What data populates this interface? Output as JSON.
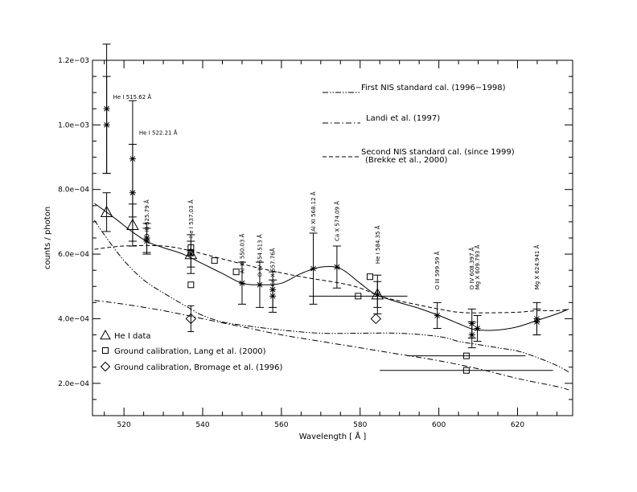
{
  "chart_data": {
    "type": "scatter",
    "xlabel": "Wavelength [ Å ]",
    "ylabel": "counts / photon",
    "xlim": [
      512,
      634
    ],
    "ylim": [
      0.0001,
      0.0012
    ],
    "x_ticks": [
      520,
      540,
      560,
      580,
      600,
      620
    ],
    "x_tick_labels": [
      "520",
      "540",
      "560",
      "580",
      "600",
      "620"
    ],
    "y_ticks": [
      0.0002,
      0.0004,
      0.0006,
      0.0008,
      0.001,
      0.0012
    ],
    "y_tick_labels": [
      "2.0e−04",
      "4.0e−04",
      "6.0e−04",
      "8.0e−04",
      "1.0e−03",
      "1.2e−03"
    ],
    "grid": false,
    "legend_lines": [
      {
        "label": "First NIS standard cal. (1996−1998)",
        "style": "dash-dot-dot"
      },
      {
        "label": "Landi et al. (1997)",
        "style": "dash-dot"
      },
      {
        "label": "Second NIS standard cal. (since 1999)",
        "style": "dashed"
      },
      {
        "label": "(Brekke et al., 2000)",
        "style": "none"
      }
    ],
    "legend_markers": [
      {
        "label": "He I data",
        "marker": "triangle"
      },
      {
        "label": "Ground calibration, Lang et al. (2000)",
        "marker": "square"
      },
      {
        "label": "Ground calibration, Bromage et al. (1996)",
        "marker": "diamond"
      }
    ],
    "line_annotations": [
      {
        "text": "He I 515.62 Å",
        "x": 515.6,
        "y": 0.00108,
        "orientation": "horizontal"
      },
      {
        "text": "He I 522.21 Å",
        "x": 522.2,
        "y": 0.00097,
        "orientation": "horizontal"
      },
      {
        "text": "O III 525.79 Å",
        "x": 525.8,
        "y": 0.00065,
        "orientation": "vertical"
      },
      {
        "text": "He I 537.03 Å",
        "x": 537.0,
        "y": 0.00065,
        "orientation": "vertical"
      },
      {
        "text": "Al XI 550.03 Å",
        "x": 550.0,
        "y": 0.00054,
        "orientation": "vertical"
      },
      {
        "text": "O IV 554.513 Å",
        "x": 554.5,
        "y": 0.00053,
        "orientation": "vertical"
      },
      {
        "text": "Ca X 557.76Å",
        "x": 557.8,
        "y": 0.0005,
        "orientation": "vertical"
      },
      {
        "text": "Al XI 568.12 Å",
        "x": 568.1,
        "y": 0.00067,
        "orientation": "vertical"
      },
      {
        "text": "Ca X 574.09 Å",
        "x": 574.1,
        "y": 0.00064,
        "orientation": "vertical"
      },
      {
        "text": "He I 584.35 Å",
        "x": 584.4,
        "y": 0.00057,
        "orientation": "vertical"
      },
      {
        "text": "O III 599.59 Å",
        "x": 599.6,
        "y": 0.00049,
        "orientation": "vertical"
      },
      {
        "text": "O IV 608.397 Å",
        "x": 608.4,
        "y": 0.00049,
        "orientation": "vertical"
      },
      {
        "text": "Mg X 609.793 Å",
        "x": 609.8,
        "y": 0.00049,
        "orientation": "vertical"
      },
      {
        "text": "Mg X 624.941 Å",
        "x": 624.9,
        "y": 0.00049,
        "orientation": "vertical"
      }
    ],
    "series": [
      {
        "style": "solid",
        "x": [
          512.5,
          515,
          518,
          522,
          526,
          530,
          535,
          540,
          545,
          550,
          555,
          560,
          565,
          570,
          575,
          580,
          584,
          590,
          595,
          600,
          605,
          608,
          610,
          615,
          620,
          625,
          630,
          633
        ],
        "y": [
          0.000757,
          0.000735,
          0.000708,
          0.00067,
          0.000638,
          0.00062,
          0.0006,
          0.00057,
          0.00054,
          0.00051,
          0.000505,
          0.00051,
          0.00054,
          0.00056,
          0.000555,
          0.00051,
          0.000475,
          0.00045,
          0.000432,
          0.00041,
          0.000385,
          0.00037,
          0.000365,
          0.000365,
          0.000375,
          0.000395,
          0.000415,
          0.00043
        ]
      },
      {
        "style": "dashed",
        "x": [
          512.5,
          520,
          530,
          537,
          545,
          555,
          565,
          575,
          580,
          585,
          590,
          600,
          605,
          610,
          620,
          625,
          630,
          633
        ],
        "y": [
          0.000615,
          0.000625,
          0.000625,
          0.00061,
          0.000585,
          0.000555,
          0.00053,
          0.00051,
          0.000495,
          0.00047,
          0.000455,
          0.00043,
          0.00042,
          0.000418,
          0.00042,
          0.000425,
          0.000425,
          0.00043
        ]
      },
      {
        "style": "dash-dot-dot",
        "x": [
          512.5,
          515,
          520,
          525,
          530,
          537,
          540,
          545,
          550,
          560,
          570,
          580,
          590,
          600,
          605,
          610,
          615,
          620,
          625,
          630,
          633
        ],
        "y": [
          0.000705,
          0.00066,
          0.00058,
          0.00052,
          0.00048,
          0.00043,
          0.00041,
          0.00039,
          0.00038,
          0.000365,
          0.000355,
          0.000355,
          0.000355,
          0.000345,
          0.00033,
          0.00032,
          0.00031,
          0.0003,
          0.00028,
          0.000255,
          0.000235
        ]
      },
      {
        "style": "dash-dot",
        "x": [
          512.5,
          520,
          530,
          540,
          550,
          560,
          570,
          580,
          590,
          600,
          610,
          620,
          630,
          633
        ],
        "y": [
          0.000457,
          0.000445,
          0.000425,
          0.0004,
          0.000375,
          0.00035,
          0.00033,
          0.00031,
          0.00029,
          0.00027,
          0.000245,
          0.000215,
          0.00019,
          0.00018
        ]
      }
    ],
    "points_star": [
      {
        "x": 515.6,
        "y": 0.00105,
        "err": 0.0002
      },
      {
        "x": 515.6,
        "y": 0.001,
        "err": 0.00015
      },
      {
        "x": 522.2,
        "y": 0.000895,
        "err": 0.00018
      },
      {
        "x": 522.2,
        "y": 0.00079,
        "err": 0.00015
      },
      {
        "x": 525.8,
        "y": 0.00065,
        "err": 4.5e-05
      },
      {
        "x": 525.8,
        "y": 0.00064,
        "err": 4e-05
      },
      {
        "x": 537.0,
        "y": 0.0006,
        "err": 6e-05
      },
      {
        "x": 550.0,
        "y": 0.00051,
        "err": 6.5e-05
      },
      {
        "x": 554.5,
        "y": 0.000505,
        "err": 7e-05
      },
      {
        "x": 557.8,
        "y": 0.00049,
        "err": 5.5e-05
      },
      {
        "x": 557.8,
        "y": 0.00047,
        "err": 5e-05
      },
      {
        "x": 568.1,
        "y": 0.000555,
        "err": 0.00011
      },
      {
        "x": 574.1,
        "y": 0.00056,
        "err": 6.5e-05
      },
      {
        "x": 584.4,
        "y": 0.000475,
        "err": 6e-05
      },
      {
        "x": 599.6,
        "y": 0.00041,
        "err": 4e-05
      },
      {
        "x": 608.4,
        "y": 0.000385,
        "err": 4.5e-05
      },
      {
        "x": 608.4,
        "y": 0.00035,
        "err": 4e-05
      },
      {
        "x": 609.8,
        "y": 0.00037,
        "err": 4e-05
      },
      {
        "x": 624.9,
        "y": 0.0004,
        "err": 5e-05
      },
      {
        "x": 624.9,
        "y": 0.00039,
        "err": 4e-05
      }
    ],
    "points_triangle": [
      {
        "x": 515.6,
        "y": 0.00073,
        "err": 6e-05
      },
      {
        "x": 522.2,
        "y": 0.00069,
        "err": 6.5e-05
      },
      {
        "x": 537.0,
        "y": 0.0006,
        "err": 4e-05
      },
      {
        "x": 584.4,
        "y": 0.000475,
        "err": 4e-05
      }
    ],
    "points_square": [
      {
        "x": 537.0,
        "y": 0.00062,
        "xerr": 0,
        "err": 0
      },
      {
        "x": 537.0,
        "y": 0.000605,
        "xerr": 0,
        "err": 0
      },
      {
        "x": 537.0,
        "y": 0.000505,
        "xerr": 0,
        "err": 0
      },
      {
        "x": 543.0,
        "y": 0.00058,
        "xerr": 0,
        "err": 0
      },
      {
        "x": 548.5,
        "y": 0.000545,
        "xerr": 0,
        "err": 0
      },
      {
        "x": 579.5,
        "y": 0.00047,
        "xerr": 12.5,
        "err": 0
      },
      {
        "x": 582.5,
        "y": 0.00053,
        "xerr": 0,
        "err": 0
      },
      {
        "x": 607.0,
        "y": 0.000285,
        "xerr": 15,
        "err": 0
      },
      {
        "x": 607.0,
        "y": 0.00024,
        "xerr": 22,
        "err": 0
      }
    ],
    "points_diamond": [
      {
        "x": 537.0,
        "y": 0.0004,
        "err": 4e-05
      },
      {
        "x": 584.0,
        "y": 0.0004,
        "err": 0
      }
    ]
  }
}
